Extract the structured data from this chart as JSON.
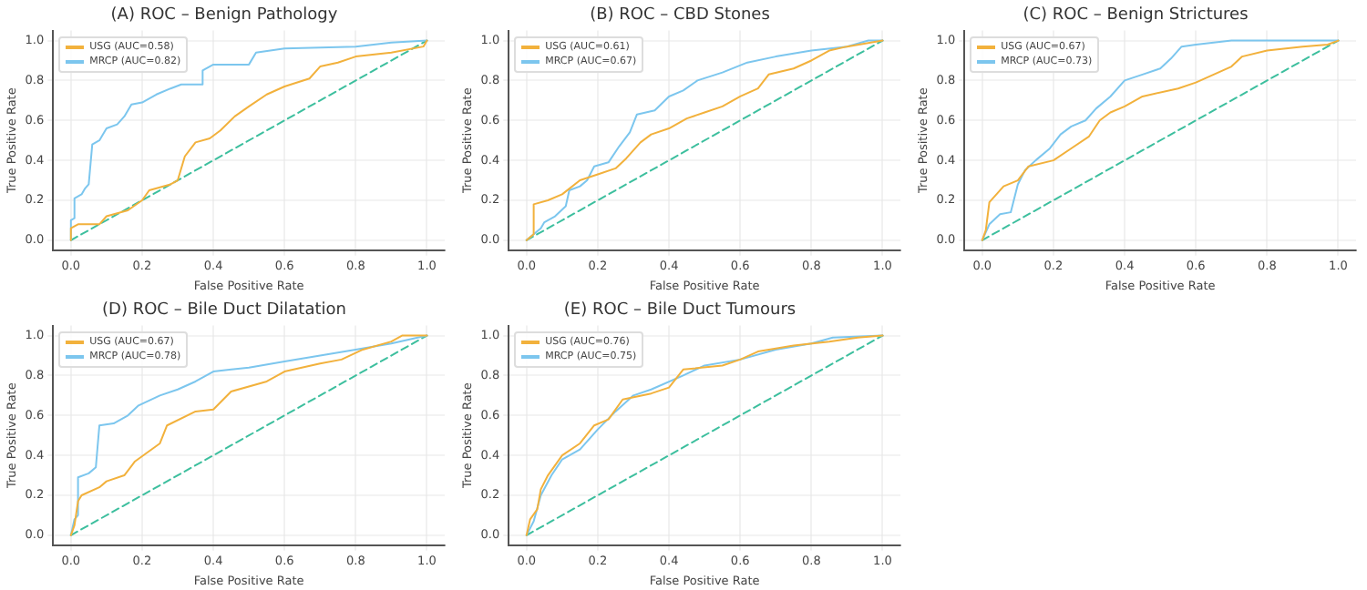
{
  "chart_data": [
    {
      "type": "line",
      "title": "(A) ROC – Benign Pathology",
      "xlabel": "False Positive Rate",
      "ylabel": "True Positive Rate",
      "xlim": [
        -0.05,
        1.05
      ],
      "ylim": [
        -0.05,
        1.05
      ],
      "xticks": [
        {
          "value": 0,
          "label": "0.0"
        },
        {
          "value": 0.2,
          "label": "0.2"
        },
        {
          "value": 0.4,
          "label": "0.4"
        },
        {
          "value": 0.6,
          "label": "0.6"
        },
        {
          "value": 0.8,
          "label": "0.8"
        },
        {
          "value": 1,
          "label": "1.0"
        }
      ],
      "yticks": [
        {
          "value": 0,
          "label": "0.0"
        },
        {
          "value": 0.2,
          "label": "0.2"
        },
        {
          "value": 0.4,
          "label": "0.4"
        },
        {
          "value": 0.6,
          "label": "0.6"
        },
        {
          "value": 0.8,
          "label": "0.8"
        },
        {
          "value": 1,
          "label": "1.0"
        }
      ],
      "grid": true,
      "legend": "top left",
      "series": [
        {
          "name": "USG (AUC=0.58)",
          "color": "#f2b13c",
          "x": [
            0,
            0,
            0.02,
            0.08,
            0.1,
            0.16,
            0.2,
            0.22,
            0.28,
            0.3,
            0.32,
            0.35,
            0.39,
            0.42,
            0.46,
            0.5,
            0.55,
            0.6,
            0.67,
            0.7,
            0.75,
            0.8,
            0.9,
            0.99,
            1
          ],
          "values": [
            0,
            0.06,
            0.08,
            0.08,
            0.12,
            0.15,
            0.2,
            0.25,
            0.28,
            0.3,
            0.42,
            0.49,
            0.51,
            0.55,
            0.62,
            0.67,
            0.73,
            0.77,
            0.81,
            0.87,
            0.89,
            0.92,
            0.94,
            0.97,
            1
          ]
        },
        {
          "name": "MRCP (AUC=0.82)",
          "color": "#7cc6ee",
          "x": [
            0,
            0,
            0.01,
            0.01,
            0.03,
            0.04,
            0.05,
            0.06,
            0.08,
            0.1,
            0.13,
            0.15,
            0.17,
            0.2,
            0.24,
            0.28,
            0.31,
            0.37,
            0.37,
            0.4,
            0.5,
            0.52,
            0.6,
            0.8,
            0.9,
            1
          ],
          "values": [
            0,
            0.1,
            0.11,
            0.21,
            0.23,
            0.26,
            0.28,
            0.48,
            0.5,
            0.56,
            0.58,
            0.62,
            0.68,
            0.69,
            0.73,
            0.76,
            0.78,
            0.78,
            0.85,
            0.88,
            0.88,
            0.94,
            0.96,
            0.97,
            0.99,
            1
          ]
        },
        {
          "color": "#3dbf9e",
          "line_style": "dashed",
          "x": [
            0,
            1
          ],
          "values": [
            0,
            1
          ]
        }
      ]
    },
    {
      "type": "line",
      "title": "(B) ROC – CBD Stones",
      "xlabel": "False Positive Rate",
      "ylabel": "True Positive Rate",
      "xlim": [
        -0.05,
        1.05
      ],
      "ylim": [
        -0.05,
        1.05
      ],
      "xticks": [
        {
          "value": 0,
          "label": "0.0"
        },
        {
          "value": 0.2,
          "label": "0.2"
        },
        {
          "value": 0.4,
          "label": "0.4"
        },
        {
          "value": 0.6,
          "label": "0.6"
        },
        {
          "value": 0.8,
          "label": "0.8"
        },
        {
          "value": 1,
          "label": "1.0"
        }
      ],
      "yticks": [
        {
          "value": 0,
          "label": "0.0"
        },
        {
          "value": 0.2,
          "label": "0.2"
        },
        {
          "value": 0.4,
          "label": "0.4"
        },
        {
          "value": 0.6,
          "label": "0.6"
        },
        {
          "value": 0.8,
          "label": "0.8"
        },
        {
          "value": 1,
          "label": "1.0"
        }
      ],
      "grid": true,
      "legend": "top left",
      "series": [
        {
          "name": "USG (AUC=0.61)",
          "color": "#f2b13c",
          "x": [
            0,
            0.02,
            0.02,
            0.06,
            0.1,
            0.15,
            0.2,
            0.25,
            0.28,
            0.32,
            0.35,
            0.4,
            0.45,
            0.5,
            0.55,
            0.6,
            0.65,
            0.68,
            0.75,
            0.8,
            0.85,
            0.9,
            1
          ],
          "values": [
            0,
            0.03,
            0.18,
            0.2,
            0.23,
            0.3,
            0.33,
            0.36,
            0.41,
            0.49,
            0.53,
            0.56,
            0.61,
            0.64,
            0.67,
            0.72,
            0.76,
            0.83,
            0.86,
            0.9,
            0.95,
            0.97,
            1
          ]
        },
        {
          "name": "MRCP (AUC=0.67)",
          "color": "#7cc6ee",
          "x": [
            0,
            0.04,
            0.05,
            0.08,
            0.11,
            0.12,
            0.15,
            0.17,
            0.19,
            0.23,
            0.26,
            0.29,
            0.31,
            0.36,
            0.4,
            0.44,
            0.48,
            0.55,
            0.62,
            0.7,
            0.8,
            0.9,
            0.96,
            1
          ],
          "values": [
            0,
            0.06,
            0.09,
            0.12,
            0.17,
            0.25,
            0.27,
            0.3,
            0.37,
            0.39,
            0.47,
            0.54,
            0.63,
            0.65,
            0.72,
            0.75,
            0.8,
            0.84,
            0.89,
            0.92,
            0.95,
            0.97,
            1,
            1
          ]
        },
        {
          "color": "#3dbf9e",
          "line_style": "dashed",
          "x": [
            0,
            1
          ],
          "values": [
            0,
            1
          ]
        }
      ]
    },
    {
      "type": "line",
      "title": "(C) ROC – Benign Strictures",
      "xlabel": "False Positive Rate",
      "ylabel": "True Positive Rate",
      "xlim": [
        -0.05,
        1.05
      ],
      "ylim": [
        -0.05,
        1.05
      ],
      "xticks": [
        {
          "value": 0,
          "label": "0.0"
        },
        {
          "value": 0.2,
          "label": "0.2"
        },
        {
          "value": 0.4,
          "label": "0.4"
        },
        {
          "value": 0.6,
          "label": "0.6"
        },
        {
          "value": 0.8,
          "label": "0.8"
        },
        {
          "value": 1,
          "label": "1.0"
        }
      ],
      "yticks": [
        {
          "value": 0,
          "label": "0.0"
        },
        {
          "value": 0.2,
          "label": "0.2"
        },
        {
          "value": 0.4,
          "label": "0.4"
        },
        {
          "value": 0.6,
          "label": "0.6"
        },
        {
          "value": 0.8,
          "label": "0.8"
        },
        {
          "value": 1,
          "label": "1.0"
        }
      ],
      "grid": true,
      "legend": "top left",
      "series": [
        {
          "name": "USG (AUC=0.67)",
          "color": "#f2b13c",
          "x": [
            0,
            0.01,
            0.02,
            0.06,
            0.1,
            0.13,
            0.2,
            0.25,
            0.3,
            0.33,
            0.36,
            0.4,
            0.45,
            0.55,
            0.6,
            0.65,
            0.7,
            0.73,
            0.8,
            0.9,
            0.97,
            1
          ],
          "values": [
            0,
            0.05,
            0.19,
            0.27,
            0.3,
            0.37,
            0.4,
            0.46,
            0.52,
            0.6,
            0.64,
            0.67,
            0.72,
            0.76,
            0.79,
            0.83,
            0.87,
            0.92,
            0.95,
            0.97,
            0.98,
            1
          ]
        },
        {
          "name": "MRCP (AUC=0.73)",
          "color": "#7cc6ee",
          "x": [
            0,
            0.02,
            0.05,
            0.08,
            0.1,
            0.12,
            0.15,
            0.19,
            0.22,
            0.25,
            0.29,
            0.32,
            0.36,
            0.4,
            0.45,
            0.5,
            0.53,
            0.56,
            0.6,
            0.7,
            1
          ],
          "values": [
            0,
            0.08,
            0.13,
            0.14,
            0.28,
            0.35,
            0.4,
            0.46,
            0.53,
            0.57,
            0.6,
            0.66,
            0.72,
            0.8,
            0.83,
            0.86,
            0.91,
            0.97,
            0.98,
            1,
            1
          ]
        },
        {
          "color": "#3dbf9e",
          "line_style": "dashed",
          "x": [
            0,
            1
          ],
          "values": [
            0,
            1
          ]
        }
      ]
    },
    {
      "type": "line",
      "title": "(D) ROC – Bile Duct Dilatation",
      "xlabel": "False Positive Rate",
      "ylabel": "True Positive Rate",
      "xlim": [
        -0.05,
        1.05
      ],
      "ylim": [
        -0.05,
        1.05
      ],
      "xticks": [
        {
          "value": 0,
          "label": "0.0"
        },
        {
          "value": 0.2,
          "label": "0.2"
        },
        {
          "value": 0.4,
          "label": "0.4"
        },
        {
          "value": 0.6,
          "label": "0.6"
        },
        {
          "value": 0.8,
          "label": "0.8"
        },
        {
          "value": 1,
          "label": "1.0"
        }
      ],
      "yticks": [
        {
          "value": 0,
          "label": "0.0"
        },
        {
          "value": 0.2,
          "label": "0.2"
        },
        {
          "value": 0.4,
          "label": "0.4"
        },
        {
          "value": 0.6,
          "label": "0.6"
        },
        {
          "value": 0.8,
          "label": "0.8"
        },
        {
          "value": 1,
          "label": "1.0"
        }
      ],
      "grid": true,
      "legend": "top left",
      "series": [
        {
          "name": "USG (AUC=0.67)",
          "color": "#f2b13c",
          "x": [
            0,
            0.01,
            0.02,
            0.03,
            0.08,
            0.1,
            0.15,
            0.18,
            0.25,
            0.27,
            0.35,
            0.4,
            0.45,
            0.55,
            0.6,
            0.7,
            0.76,
            0.82,
            0.9,
            0.93,
            1
          ],
          "values": [
            0,
            0.05,
            0.17,
            0.2,
            0.24,
            0.27,
            0.3,
            0.37,
            0.46,
            0.55,
            0.62,
            0.63,
            0.72,
            0.77,
            0.82,
            0.86,
            0.88,
            0.93,
            0.97,
            1,
            1
          ]
        },
        {
          "name": "MRCP (AUC=0.78)",
          "color": "#7cc6ee",
          "x": [
            0,
            0.01,
            0.02,
            0.02,
            0.05,
            0.07,
            0.08,
            0.12,
            0.16,
            0.19,
            0.25,
            0.3,
            0.35,
            0.4,
            0.5,
            0.6,
            0.7,
            0.8,
            0.9,
            1
          ],
          "values": [
            0,
            0.08,
            0.1,
            0.29,
            0.31,
            0.34,
            0.55,
            0.56,
            0.6,
            0.65,
            0.7,
            0.73,
            0.77,
            0.82,
            0.84,
            0.87,
            0.9,
            0.93,
            0.96,
            1
          ]
        },
        {
          "color": "#3dbf9e",
          "line_style": "dashed",
          "x": [
            0,
            1
          ],
          "values": [
            0,
            1
          ]
        }
      ]
    },
    {
      "type": "line",
      "title": "(E) ROC – Bile Duct Tumours",
      "xlabel": "False Positive Rate",
      "ylabel": "True Positive Rate",
      "xlim": [
        -0.05,
        1.05
      ],
      "ylim": [
        -0.05,
        1.05
      ],
      "xticks": [
        {
          "value": 0,
          "label": "0.0"
        },
        {
          "value": 0.2,
          "label": "0.2"
        },
        {
          "value": 0.4,
          "label": "0.4"
        },
        {
          "value": 0.6,
          "label": "0.6"
        },
        {
          "value": 0.8,
          "label": "0.8"
        },
        {
          "value": 1,
          "label": "1.0"
        }
      ],
      "yticks": [
        {
          "value": 0,
          "label": "0.0"
        },
        {
          "value": 0.2,
          "label": "0.2"
        },
        {
          "value": 0.4,
          "label": "0.4"
        },
        {
          "value": 0.6,
          "label": "0.6"
        },
        {
          "value": 0.8,
          "label": "0.8"
        },
        {
          "value": 1,
          "label": "1.0"
        }
      ],
      "grid": true,
      "legend": "top left",
      "series": [
        {
          "name": "USG (AUC=0.76)",
          "color": "#f2b13c",
          "x": [
            0,
            0.01,
            0.03,
            0.04,
            0.06,
            0.08,
            0.1,
            0.15,
            0.19,
            0.23,
            0.27,
            0.35,
            0.4,
            0.44,
            0.55,
            0.6,
            0.65,
            0.75,
            0.85,
            0.93,
            1
          ],
          "values": [
            0,
            0.08,
            0.13,
            0.23,
            0.3,
            0.35,
            0.4,
            0.46,
            0.55,
            0.58,
            0.68,
            0.71,
            0.74,
            0.83,
            0.85,
            0.88,
            0.92,
            0.95,
            0.97,
            0.99,
            1
          ]
        },
        {
          "name": "MRCP (AUC=0.75)",
          "color": "#7cc6ee",
          "x": [
            0,
            0.02,
            0.04,
            0.07,
            0.1,
            0.15,
            0.2,
            0.25,
            0.3,
            0.35,
            0.44,
            0.5,
            0.6,
            0.7,
            0.8,
            0.86,
            1
          ],
          "values": [
            0,
            0.07,
            0.2,
            0.3,
            0.38,
            0.43,
            0.53,
            0.62,
            0.7,
            0.73,
            0.8,
            0.85,
            0.88,
            0.93,
            0.96,
            0.99,
            1
          ]
        },
        {
          "color": "#3dbf9e",
          "line_style": "dashed",
          "x": [
            0,
            1
          ],
          "values": [
            0,
            1
          ]
        }
      ]
    }
  ]
}
